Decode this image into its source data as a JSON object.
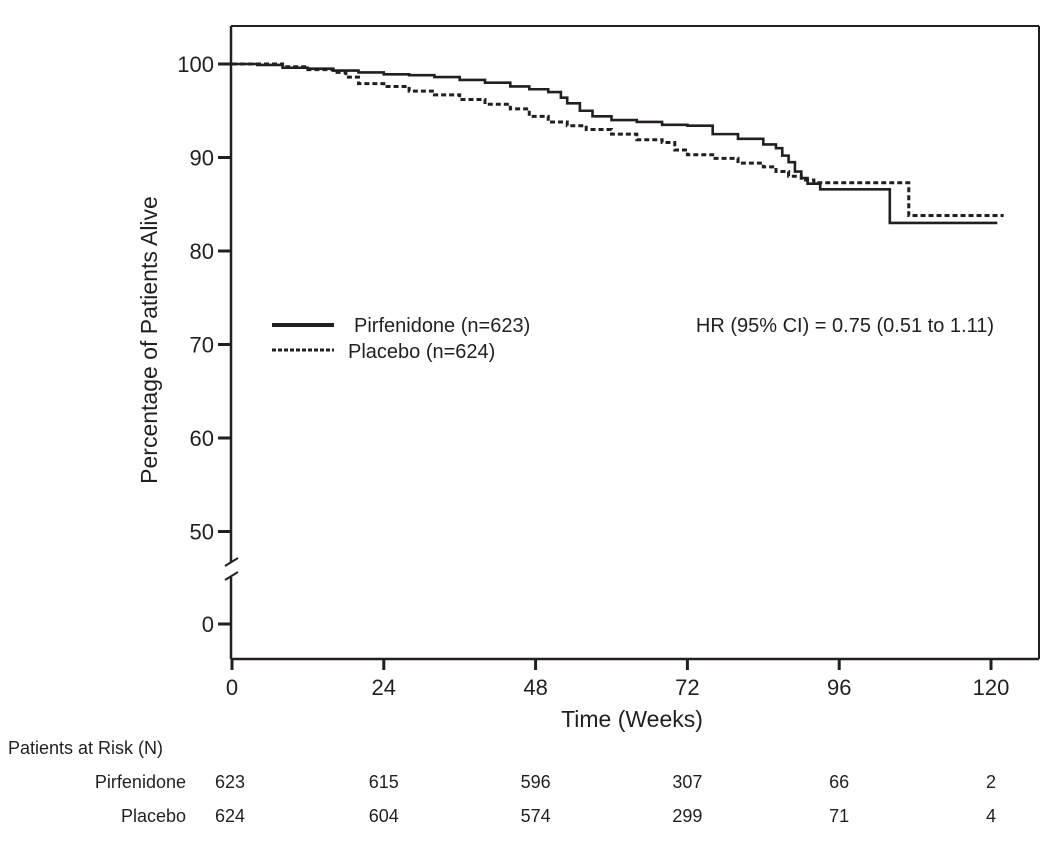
{
  "chart_data": {
    "type": "line",
    "subtype": "kaplan-meier-step",
    "title": "",
    "xlabel": "Time (Weeks)",
    "ylabel": "Percentage of Patients Alive",
    "xlim": [
      0,
      126
    ],
    "ylim_upper_segment": [
      50,
      104
    ],
    "y_axis_break": "between 0 and 50",
    "x_ticks": [
      0,
      24,
      48,
      72,
      96,
      120
    ],
    "x_tick_labels": [
      "0",
      "24",
      "48",
      "72",
      "96",
      "120"
    ],
    "y_ticks": [
      100,
      90,
      80,
      70,
      60,
      50,
      0
    ],
    "y_tick_labels": [
      "100",
      "90",
      "80",
      "70",
      "60",
      "50",
      "0"
    ],
    "grid": false,
    "legend": {
      "placement": "center-left",
      "entries": [
        {
          "label": "Pirfenidone (n=623)",
          "style": "solid"
        },
        {
          "label": "Placebo (n=624)",
          "style": "dotted"
        }
      ]
    },
    "annotations": [
      "HR (95% CI) = 0.75 (0.51 to 1.11)"
    ],
    "series": [
      {
        "name": "Pirfenidone (n=623)",
        "style": "solid",
        "x": [
          0,
          4,
          8,
          12,
          16,
          20,
          24,
          28,
          32,
          36,
          40,
          44,
          47,
          50,
          52,
          53,
          55,
          57,
          60,
          64,
          68,
          72,
          76,
          80,
          84,
          86,
          87,
          88,
          89,
          90,
          91,
          93,
          98,
          101,
          104,
          109,
          115,
          121
        ],
        "y": [
          100,
          99.9,
          99.6,
          99.5,
          99.3,
          99.1,
          98.9,
          98.8,
          98.6,
          98.3,
          98.0,
          97.6,
          97.3,
          97.0,
          96.4,
          95.8,
          95.0,
          94.4,
          94.0,
          93.8,
          93.5,
          93.4,
          92.5,
          92.0,
          91.4,
          91.0,
          90.2,
          89.5,
          88.5,
          87.8,
          87.2,
          86.6,
          86.6,
          86.6,
          83.0,
          83.0,
          83.0,
          83.0
        ]
      },
      {
        "name": "Placebo (n=624)",
        "style": "dotted",
        "x": [
          0,
          4,
          8,
          12,
          16,
          18,
          20,
          24,
          28,
          32,
          36,
          40,
          44,
          47,
          50,
          53,
          56,
          60,
          64,
          68,
          70,
          72,
          76,
          80,
          84,
          86,
          88,
          90,
          92,
          93,
          98,
          104,
          107,
          110,
          116,
          122
        ],
        "y": [
          100,
          100,
          99.7,
          99.4,
          99.1,
          98.6,
          97.9,
          97.6,
          97.1,
          96.7,
          96.2,
          95.7,
          95.2,
          94.4,
          93.8,
          93.4,
          93.0,
          92.5,
          91.9,
          91.6,
          90.8,
          90.3,
          89.9,
          89.4,
          89.0,
          88.5,
          88.0,
          87.6,
          87.3,
          87.3,
          87.3,
          87.3,
          83.8,
          83.8,
          83.8,
          83.8
        ]
      }
    ],
    "risk_table": {
      "title": "Patients at Risk (N)",
      "timepoints": [
        0,
        24,
        48,
        72,
        96,
        120
      ],
      "rows": [
        {
          "label": "Pirfenidone",
          "values": [
            "623",
            "615",
            "596",
            "307",
            "66",
            "2"
          ]
        },
        {
          "label": "Placebo",
          "values": [
            "624",
            "604",
            "574",
            "299",
            "71",
            "4"
          ]
        }
      ]
    }
  }
}
